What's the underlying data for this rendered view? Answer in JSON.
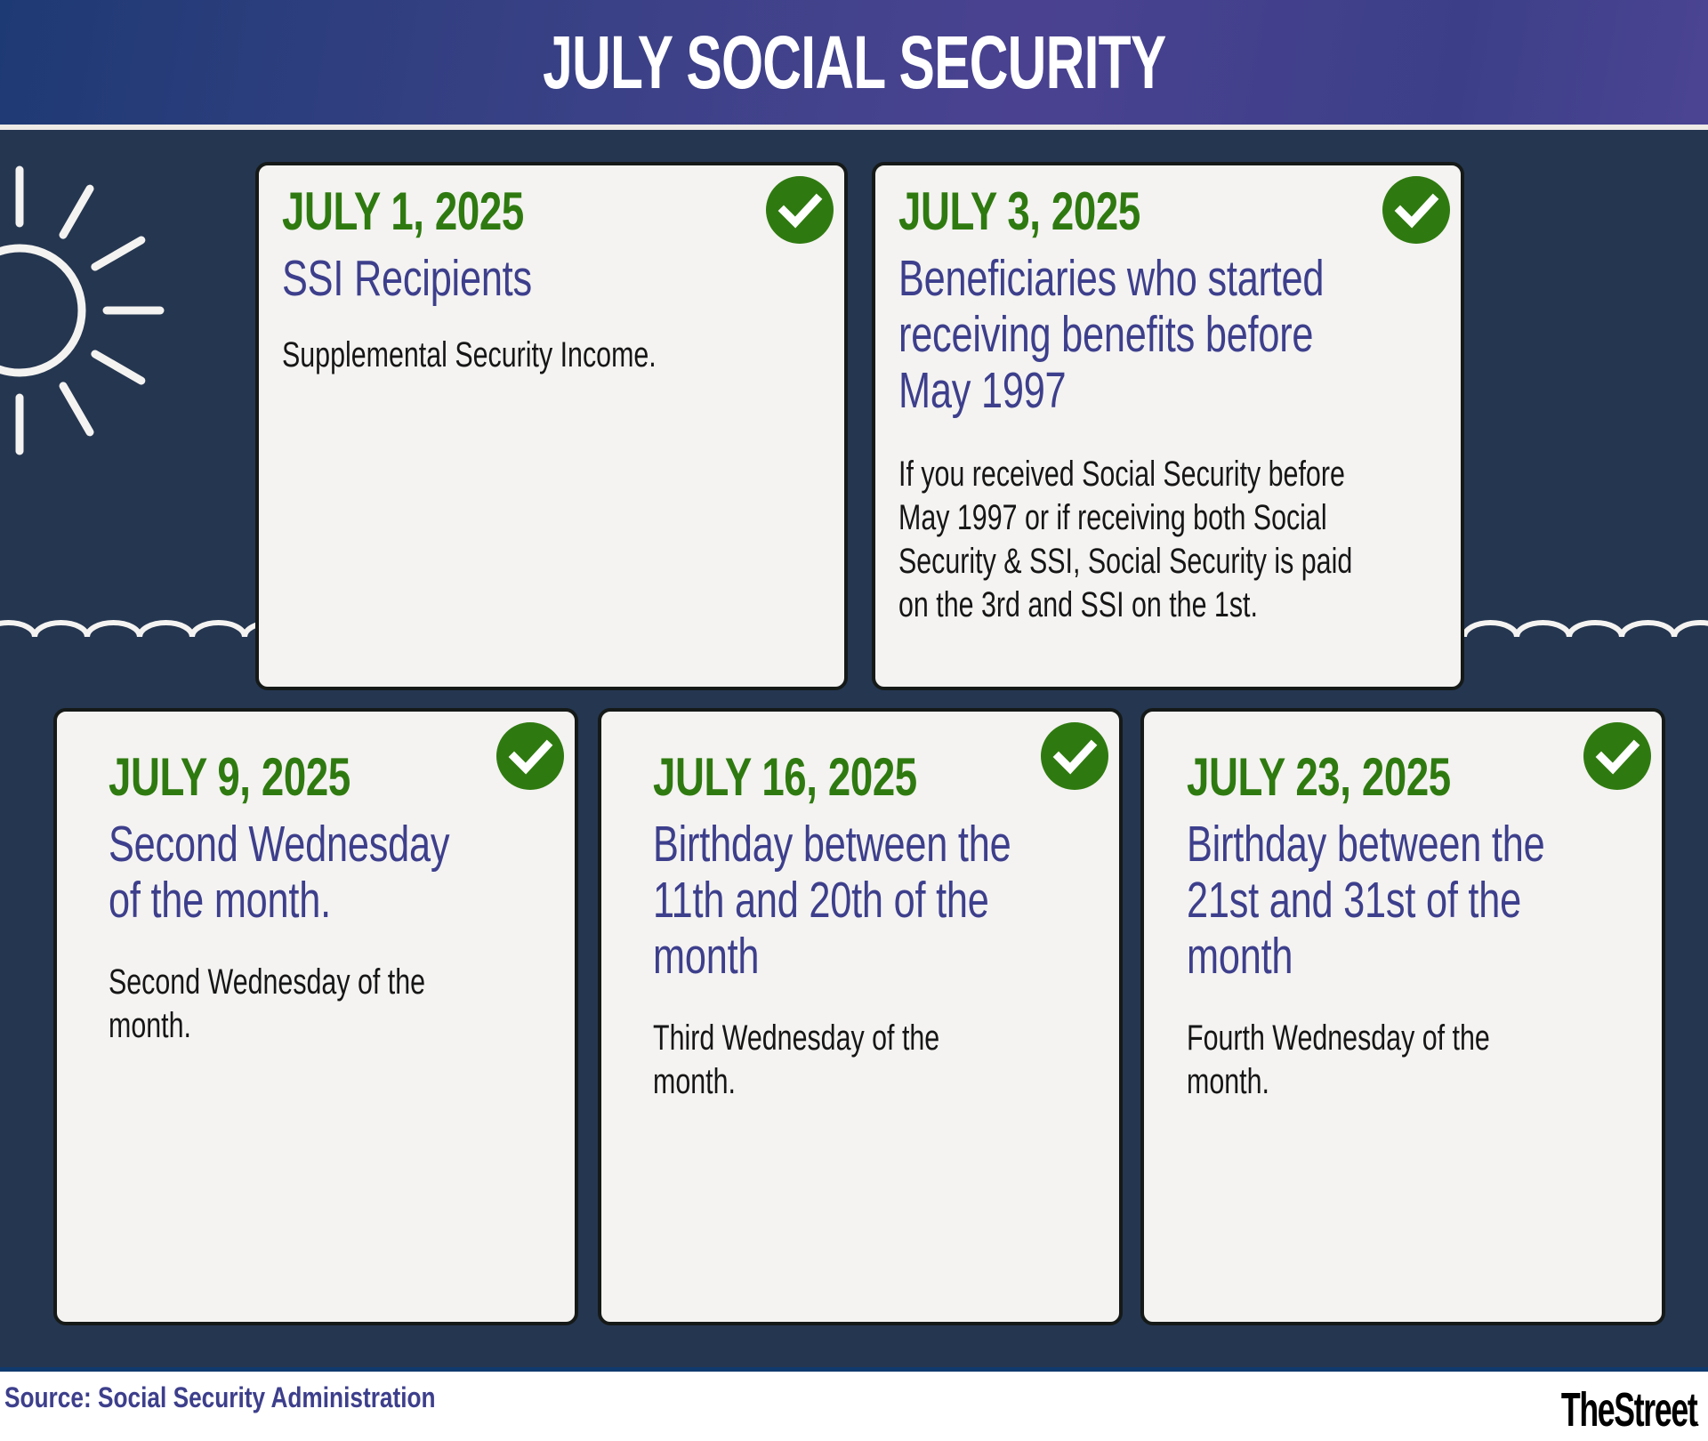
{
  "header": {
    "title": "JULY SOCIAL SECURITY"
  },
  "colors": {
    "header_gradient": [
      "#1e3a74",
      "#4a4291"
    ],
    "background": "#253650",
    "card": "#f4f3f1",
    "date": "#2f7a10",
    "title": "#3d3f8c",
    "check": "#2f7a10"
  },
  "decorations": {
    "sun_icon": "sun-icon",
    "wave": "wave-line"
  },
  "cards": [
    {
      "date": "JULY 1, 2025",
      "title": "SSI Recipients",
      "body": "Supplemental Security Income.",
      "icon": "check-circle-icon"
    },
    {
      "date": "JULY 3, 2025",
      "title": "Beneficiaries who started receiving benefits before May 1997",
      "body": "If you received Social Security before May 1997 or if receiving both Social Security & SSI, Social Security is paid on the 3rd and SSI on the 1st.",
      "icon": "check-circle-icon"
    },
    {
      "date": "JULY 9, 2025",
      "title": "Second Wednesday of the month.",
      "body": "Second Wednesday of the month.",
      "icon": "check-circle-icon"
    },
    {
      "date": "JULY 16, 2025",
      "title": "Birthday between the 11th and 20th of the month",
      "body": "Third Wednesday of the month.",
      "icon": "check-circle-icon"
    },
    {
      "date": "JULY 23, 2025",
      "title": "Birthday between the 21st and 31st of the month",
      "body": "Fourth Wednesday of the month.",
      "icon": "check-circle-icon"
    }
  ],
  "footer": {
    "source": "Source: Social Security Administration",
    "logo": "TheStreet"
  }
}
